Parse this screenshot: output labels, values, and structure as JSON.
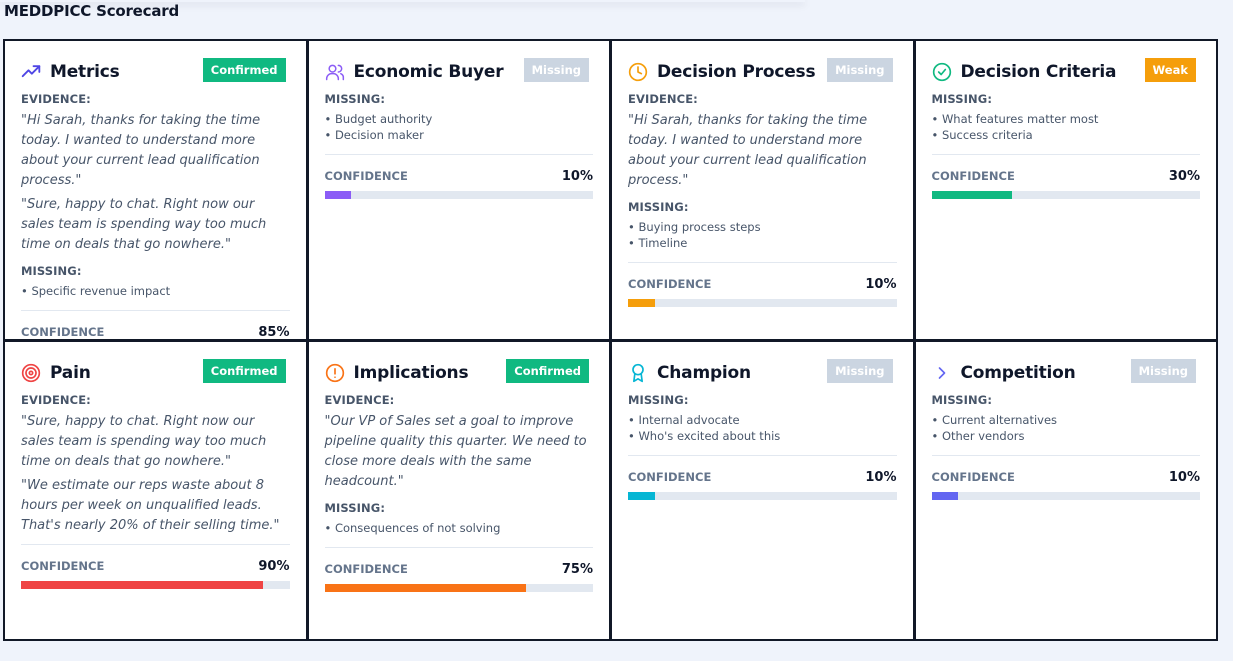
{
  "page": {
    "title": "MEDDPICC Scorecard"
  },
  "colors": {
    "confirmed": "#10b981",
    "missing": "#cbd5e1",
    "weak": "#f59e0b"
  },
  "cards": [
    {
      "id": "metrics",
      "title": "Metrics",
      "icon": "trending-up-icon",
      "icon_color": "#4f46e5",
      "status": "Confirmed",
      "status_color": "#10b981",
      "evidence_label": "EVIDENCE:",
      "evidence": [
        "\"Hi Sarah, thanks for taking the time today. I wanted to understand more about your current lead qualification process.\"",
        "\"Sure, happy to chat. Right now our sales team is spending way too much time on deals that go nowhere.\""
      ],
      "missing_label": "MISSING:",
      "missing": [
        "• Specific revenue impact"
      ],
      "confidence_label": "CONFIDENCE",
      "confidence_text": "85%",
      "confidence": 0.85,
      "bar_color": "#3b82f6"
    },
    {
      "id": "economic-buyer",
      "title": "Economic Buyer",
      "icon": "users-icon",
      "icon_color": "#8b5cf6",
      "status": "Missing",
      "status_color": "#cbd5e1",
      "evidence_label": "",
      "evidence": [],
      "missing_label": "MISSING:",
      "missing": [
        "• Budget authority",
        "• Decision maker"
      ],
      "confidence_label": "CONFIDENCE",
      "confidence_text": "10%",
      "confidence": 0.1,
      "bar_color": "#8b5cf6"
    },
    {
      "id": "decision-process",
      "title": "Decision Process",
      "icon": "clock-icon",
      "icon_color": "#f59e0b",
      "status": "Missing",
      "status_color": "#cbd5e1",
      "evidence_label": "EVIDENCE:",
      "evidence": [
        "\"Hi Sarah, thanks for taking the time today. I wanted to understand more about your current lead qualification process.\""
      ],
      "missing_label": "MISSING:",
      "missing": [
        "• Buying process steps",
        "• Timeline"
      ],
      "confidence_label": "CONFIDENCE",
      "confidence_text": "10%",
      "confidence": 0.1,
      "bar_color": "#f59e0b"
    },
    {
      "id": "decision-criteria",
      "title": "Decision Criteria",
      "icon": "check-circle-icon",
      "icon_color": "#10b981",
      "status": "Weak",
      "status_color": "#f59e0b",
      "evidence_label": "",
      "evidence": [],
      "missing_label": "MISSING:",
      "missing": [
        "• What features matter most",
        "• Success criteria"
      ],
      "confidence_label": "CONFIDENCE",
      "confidence_text": "30%",
      "confidence": 0.3,
      "bar_color": "#10b981"
    },
    {
      "id": "pain",
      "title": "Pain",
      "icon": "target-icon",
      "icon_color": "#ef4444",
      "status": "Confirmed",
      "status_color": "#10b981",
      "evidence_label": "EVIDENCE:",
      "evidence": [
        "\"Sure, happy to chat. Right now our sales team is spending way too much time on deals that go nowhere.\"",
        "\"We estimate our reps waste about 8 hours per week on unqualified leads. That's nearly 20% of their selling time.\""
      ],
      "missing_label": "",
      "missing": [],
      "confidence_label": "CONFIDENCE",
      "confidence_text": "90%",
      "confidence": 0.9,
      "bar_color": "#ef4444"
    },
    {
      "id": "implications",
      "title": "Implications",
      "icon": "alert-circle-icon",
      "icon_color": "#f97316",
      "status": "Confirmed",
      "status_color": "#10b981",
      "evidence_label": "EVIDENCE:",
      "evidence": [
        "\"Our VP of Sales set a goal to improve pipeline quality this quarter. We need to close more deals with the same headcount.\""
      ],
      "missing_label": "MISSING:",
      "missing": [
        "• Consequences of not solving"
      ],
      "confidence_label": "CONFIDENCE",
      "confidence_text": "75%",
      "confidence": 0.75,
      "bar_color": "#f97316"
    },
    {
      "id": "champion",
      "title": "Champion",
      "icon": "award-icon",
      "icon_color": "#06b6d4",
      "status": "Missing",
      "status_color": "#cbd5e1",
      "evidence_label": "",
      "evidence": [],
      "missing_label": "MISSING:",
      "missing": [
        "• Internal advocate",
        "• Who's excited about this"
      ],
      "confidence_label": "CONFIDENCE",
      "confidence_text": "10%",
      "confidence": 0.1,
      "bar_color": "#06b6d4"
    },
    {
      "id": "competition",
      "title": "Competition",
      "icon": "chevron-right-icon",
      "icon_color": "#6366f1",
      "status": "Missing",
      "status_color": "#cbd5e1",
      "evidence_label": "",
      "evidence": [],
      "missing_label": "MISSING:",
      "missing": [
        "• Current alternatives",
        "• Other vendors"
      ],
      "confidence_label": "CONFIDENCE",
      "confidence_text": "10%",
      "confidence": 0.1,
      "bar_color": "#6366f1"
    }
  ]
}
